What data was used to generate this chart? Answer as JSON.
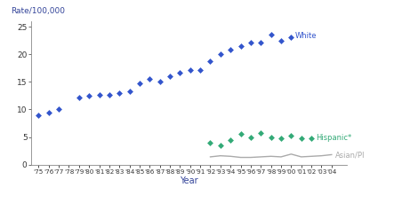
{
  "ylabel": "Rate/100,000",
  "xlabel": "Year",
  "ylim": [
    0,
    26
  ],
  "yticks": [
    0,
    5,
    10,
    15,
    20,
    25
  ],
  "white": {
    "years": [
      1975,
      1976,
      1977,
      1978,
      1979,
      1980,
      1981,
      1982,
      1983,
      1984,
      1985,
      1986,
      1987,
      1988,
      1989,
      1990,
      1991,
      1992,
      1993,
      1994,
      1995,
      1996,
      1997,
      1998,
      1999,
      2000
    ],
    "values": [
      8.9,
      9.5,
      10.1,
      null,
      12.2,
      12.5,
      12.6,
      12.6,
      13.0,
      13.2,
      14.8,
      15.5,
      15.1,
      16.0,
      16.7,
      17.1,
      17.2,
      18.8,
      20.0,
      20.8,
      21.4,
      22.1,
      22.1,
      23.5,
      22.4,
      23.0
    ],
    "color": "#3355cc",
    "label": "White",
    "markersize": 3.5
  },
  "hispanic": {
    "years": [
      1992,
      1993,
      1994,
      1995,
      1996,
      1997,
      1998,
      1999,
      2000,
      2001,
      2002
    ],
    "values": [
      3.9,
      3.5,
      4.5,
      5.6,
      4.9,
      5.8,
      5.0,
      4.8,
      5.2,
      4.8,
      4.7
    ],
    "color": "#33aa77",
    "label": "Hispanic*",
    "markersize": 3.5
  },
  "asian": {
    "years": [
      1992,
      1993,
      1994,
      1995,
      1996,
      1997,
      1998,
      1999,
      2000,
      2001,
      2002,
      2003,
      2004
    ],
    "values": [
      1.4,
      1.6,
      1.5,
      1.3,
      1.3,
      1.4,
      1.5,
      1.4,
      1.9,
      1.4,
      1.5,
      1.6,
      1.8
    ],
    "color": "#aaaaaa",
    "label": "Asian/PI"
  },
  "xtick_years": [
    1975,
    1976,
    1977,
    1978,
    1979,
    1980,
    1981,
    1982,
    1983,
    1984,
    1985,
    1986,
    1987,
    1988,
    1989,
    1990,
    1991,
    1992,
    1993,
    1994,
    1995,
    1996,
    1997,
    1998,
    1999,
    2000,
    2001,
    2002,
    2003,
    2004
  ],
  "xtick_labels": [
    "'75",
    "'76",
    "'77",
    "'78",
    "'79",
    "'80",
    "'81",
    "'82",
    "'83",
    "'84",
    "'85",
    "'86",
    "'87",
    "'88",
    "'89",
    "'90",
    "'91",
    "'92",
    "'93",
    "'94",
    "'95",
    "'96",
    "'97",
    "'98",
    "'99",
    "'00",
    "'01",
    "'02",
    "'03",
    "'04"
  ],
  "ylabel_color": "#334499",
  "xlabel_color": "#334499",
  "bg_color": "#ffffff"
}
